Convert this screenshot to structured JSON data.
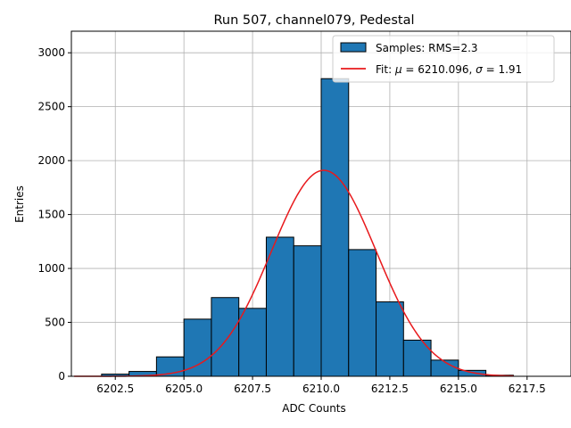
{
  "chart_data": {
    "type": "bar",
    "title": "Run 507, channel079, Pedestal",
    "xlabel": "ADC Counts",
    "ylabel": "Entries",
    "xlim": [
      6200.9,
      6219.1
    ],
    "ylim": [
      0,
      3200
    ],
    "xticks": [
      6202.5,
      6205.0,
      6207.5,
      6210.0,
      6212.5,
      6215.0,
      6217.5
    ],
    "xtick_labels": [
      "6202.5",
      "6205.0",
      "6207.5",
      "6210.0",
      "6212.5",
      "6215.0",
      "6217.5"
    ],
    "yticks": [
      0,
      500,
      1000,
      1500,
      2000,
      2500,
      3000
    ],
    "ytick_labels": [
      "0",
      "500",
      "1000",
      "1500",
      "2000",
      "2500",
      "3000"
    ],
    "grid": true,
    "legend_position": "top-right",
    "bins": [
      {
        "x0": 6202.0,
        "x1": 6203.0,
        "count": 20
      },
      {
        "x0": 6203.0,
        "x1": 6204.0,
        "count": 45
      },
      {
        "x0": 6204.0,
        "x1": 6205.0,
        "count": 180
      },
      {
        "x0": 6205.0,
        "x1": 6206.0,
        "count": 530
      },
      {
        "x0": 6206.0,
        "x1": 6207.0,
        "count": 730
      },
      {
        "x0": 6207.0,
        "x1": 6208.0,
        "count": 630
      },
      {
        "x0": 6208.0,
        "x1": 6209.0,
        "count": 1290
      },
      {
        "x0": 6209.0,
        "x1": 6210.0,
        "count": 1210
      },
      {
        "x0": 6210.0,
        "x1": 6211.0,
        "count": 2760
      },
      {
        "x0": 6211.0,
        "x1": 6212.0,
        "count": 1175
      },
      {
        "x0": 6212.0,
        "x1": 6213.0,
        "count": 690
      },
      {
        "x0": 6213.0,
        "x1": 6214.0,
        "count": 335
      },
      {
        "x0": 6214.0,
        "x1": 6215.0,
        "count": 150
      },
      {
        "x0": 6215.0,
        "x1": 6216.0,
        "count": 55
      },
      {
        "x0": 6216.0,
        "x1": 6217.0,
        "count": 10
      }
    ],
    "fit": {
      "mu": 6210.096,
      "sigma": 1.91,
      "amplitude": 1910,
      "x_range": [
        6201.0,
        6217.0
      ]
    },
    "series": [
      {
        "name": "Samples: RMS=2.3",
        "type": "histogram",
        "color": "#1f77b4"
      },
      {
        "name": "Fit: μ = 6210.096, σ = 1.91",
        "type": "line",
        "color": "#e8191c"
      }
    ]
  },
  "legend": {
    "samples_label": "Samples: RMS=2.3",
    "fit_prefix": "Fit: ",
    "fit_mu_symbol": "μ",
    "fit_mid": " = 6210.096, ",
    "fit_sigma_symbol": "σ",
    "fit_suffix": " = 1.91"
  }
}
